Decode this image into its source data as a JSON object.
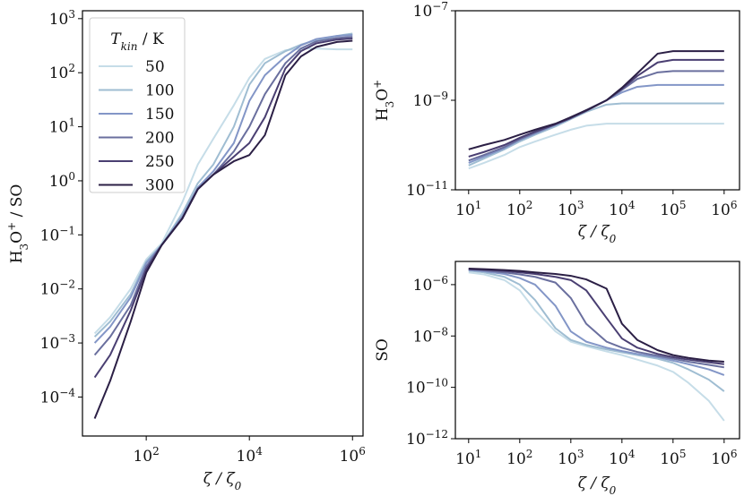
{
  "chart_data": [
    {
      "type": "line",
      "log_x": true,
      "log_y": true,
      "ylabel": [
        "H",
        "3",
        "O",
        "+",
        " / SO"
      ],
      "xlabel": [
        "ζ / ζ",
        "0"
      ],
      "legend_title": [
        "T",
        "kin",
        " / K"
      ],
      "legend": "upper left",
      "xlim": [
        5.8,
        1600000
      ],
      "ylim": [
        1.9e-05,
        1400
      ],
      "xticks": [
        {
          "value": 100,
          "label": "10",
          "exp": "2"
        },
        {
          "value": 10000,
          "label": "10",
          "exp": "4"
        },
        {
          "value": 1000000,
          "label": "10",
          "exp": "6"
        }
      ],
      "yticks": [
        {
          "value": 0.0001,
          "label": "10",
          "exp": "−4"
        },
        {
          "value": 0.001,
          "label": "10",
          "exp": "−3"
        },
        {
          "value": 0.01,
          "label": "10",
          "exp": "−2"
        },
        {
          "value": 0.1,
          "label": "10",
          "exp": "−1"
        },
        {
          "value": 1,
          "label": "10",
          "exp": "0"
        },
        {
          "value": 10,
          "label": "10",
          "exp": "1"
        },
        {
          "value": 100,
          "label": "10",
          "exp": "2"
        },
        {
          "value": 1000,
          "label": "10",
          "exp": "3"
        }
      ],
      "x": [
        10,
        20,
        50,
        100,
        200,
        500,
        1000,
        2000,
        5000,
        10000,
        20000,
        50000,
        100000,
        200000,
        500000,
        1000000
      ],
      "series": [
        {
          "name": "50",
          "color": "#c6dde8",
          "values": [
            0.0015,
            0.003,
            0.01,
            0.035,
            0.07,
            0.4,
            2,
            6,
            25,
            80,
            180,
            260,
            280,
            280,
            270,
            270
          ]
        },
        {
          "name": "100",
          "color": "#9fbdd2",
          "values": [
            0.0013,
            0.0025,
            0.008,
            0.032,
            0.065,
            0.25,
            0.9,
            2,
            10,
            60,
            150,
            250,
            330,
            400,
            480,
            530
          ]
        },
        {
          "name": "150",
          "color": "#8396c7",
          "values": [
            0.001,
            0.002,
            0.007,
            0.03,
            0.065,
            0.22,
            0.75,
            1.5,
            5,
            30,
            90,
            200,
            320,
            420,
            480,
            500
          ]
        },
        {
          "name": "200",
          "color": "#6a6f9e",
          "values": [
            0.0006,
            0.0013,
            0.005,
            0.026,
            0.065,
            0.2,
            0.7,
            1.3,
            3.5,
            10,
            40,
            150,
            280,
            380,
            440,
            460
          ]
        },
        {
          "name": "250",
          "color": "#4a3f72",
          "values": [
            0.00023,
            0.0006,
            0.004,
            0.023,
            0.065,
            0.2,
            0.7,
            1.3,
            2.8,
            5,
            15,
            120,
            250,
            350,
            410,
            430
          ]
        },
        {
          "name": "300",
          "color": "#2b1f45",
          "values": [
            4e-05,
            0.0002,
            0.0025,
            0.02,
            0.065,
            0.2,
            0.7,
            1.3,
            2.3,
            3,
            7,
            90,
            200,
            300,
            370,
            390
          ]
        }
      ]
    },
    {
      "type": "line",
      "log_x": true,
      "log_y": true,
      "ylabel": [
        "H",
        "3",
        "O",
        "+"
      ],
      "xlabel": [
        "ζ / ζ",
        "0"
      ],
      "xlim": [
        5.5,
        2000000
      ],
      "ylim": [
        1e-11,
        1e-07
      ],
      "xticks": [
        {
          "value": 10,
          "label": "10",
          "exp": "1"
        },
        {
          "value": 100,
          "label": "10",
          "exp": "2"
        },
        {
          "value": 1000,
          "label": "10",
          "exp": "3"
        },
        {
          "value": 10000,
          "label": "10",
          "exp": "4"
        },
        {
          "value": 100000,
          "label": "10",
          "exp": "5"
        },
        {
          "value": 1000000,
          "label": "10",
          "exp": "6"
        }
      ],
      "yticks": [
        {
          "value": 1e-11,
          "label": "10",
          "exp": "−11"
        },
        {
          "value": 1e-09,
          "label": "10",
          "exp": "−9"
        },
        {
          "value": 1e-07,
          "label": "10",
          "exp": "−7"
        }
      ],
      "x": [
        10,
        20,
        50,
        100,
        200,
        500,
        1000,
        2000,
        5000,
        10000,
        20000,
        50000,
        100000,
        200000,
        500000,
        1000000
      ],
      "series": [
        {
          "name": "50",
          "color": "#c6dde8",
          "values": [
            3e-11,
            4e-11,
            6e-11,
            9e-11,
            1.2e-10,
            1.7e-10,
            2.2e-10,
            2.7e-10,
            3e-10,
            3e-10,
            3e-10,
            3e-10,
            3e-10,
            3e-10,
            3e-10,
            3e-10
          ]
        },
        {
          "name": "100",
          "color": "#9fbdd2",
          "values": [
            3.5e-11,
            5e-11,
            8e-11,
            1.2e-10,
            1.7e-10,
            2.6e-10,
            3.8e-10,
            5.5e-10,
            8e-10,
            8.5e-10,
            8.5e-10,
            8.5e-10,
            8.5e-10,
            8.5e-10,
            8.5e-10,
            8.5e-10
          ]
        },
        {
          "name": "150",
          "color": "#8396c7",
          "values": [
            4e-11,
            5.5e-11,
            8.5e-11,
            1.3e-10,
            1.8e-10,
            2.8e-10,
            4e-10,
            6e-10,
            1e-09,
            1.5e-09,
            2e-09,
            2.2e-09,
            2.2e-09,
            2.2e-09,
            2.2e-09,
            2.2e-09
          ]
        },
        {
          "name": "200",
          "color": "#6a6f9e",
          "values": [
            4.5e-11,
            6e-11,
            9e-11,
            1.35e-10,
            1.9e-10,
            2.9e-10,
            4e-10,
            6e-10,
            1e-09,
            1.7e-09,
            3e-09,
            4.2e-09,
            4.5e-09,
            4.5e-09,
            4.5e-09,
            4.5e-09
          ]
        },
        {
          "name": "250",
          "color": "#4a3f72",
          "values": [
            5.5e-11,
            7e-11,
            1e-10,
            1.45e-10,
            2e-10,
            2.9e-10,
            4e-10,
            5.8e-10,
            1e-09,
            1.8e-09,
            3.5e-09,
            7e-09,
            8e-09,
            8e-09,
            8e-09,
            8e-09
          ]
        },
        {
          "name": "300",
          "color": "#2b1f45",
          "values": [
            8e-11,
            1e-10,
            1.3e-10,
            1.7e-10,
            2.2e-10,
            3e-10,
            4.2e-10,
            6e-10,
            1e-09,
            1.9e-09,
            4e-09,
            1.1e-08,
            1.25e-08,
            1.25e-08,
            1.25e-08,
            1.25e-08
          ]
        }
      ]
    },
    {
      "type": "line",
      "log_x": true,
      "log_y": true,
      "ylabel": [
        "SO"
      ],
      "xlabel": [
        "ζ / ζ",
        "0"
      ],
      "xlim": [
        5.5,
        2000000
      ],
      "ylim": [
        1e-12,
        8e-06
      ],
      "xticks": [
        {
          "value": 10,
          "label": "10",
          "exp": "1"
        },
        {
          "value": 100,
          "label": "10",
          "exp": "2"
        },
        {
          "value": 1000,
          "label": "10",
          "exp": "3"
        },
        {
          "value": 10000,
          "label": "10",
          "exp": "4"
        },
        {
          "value": 100000,
          "label": "10",
          "exp": "5"
        },
        {
          "value": 1000000,
          "label": "10",
          "exp": "6"
        }
      ],
      "yticks": [
        {
          "value": 1e-12,
          "label": "10",
          "exp": "−12"
        },
        {
          "value": 1e-10,
          "label": "10",
          "exp": "−10"
        },
        {
          "value": 1e-08,
          "label": "10",
          "exp": "−8"
        },
        {
          "value": 1e-06,
          "label": "10",
          "exp": "−6"
        }
      ],
      "x": [
        10,
        20,
        50,
        100,
        200,
        500,
        1000,
        2000,
        5000,
        10000,
        20000,
        50000,
        100000,
        200000,
        500000,
        1000000
      ],
      "series": [
        {
          "name": "50",
          "color": "#c6dde8",
          "values": [
            3e-06,
            2.5e-06,
            1.5e-06,
            6e-07,
            1e-07,
            1.5e-08,
            6e-09,
            4e-09,
            2.5e-09,
            1.8e-09,
            1.2e-09,
            7e-10,
            4e-10,
            1.5e-10,
            3e-11,
            5e-12
          ]
        },
        {
          "name": "100",
          "color": "#9fbdd2",
          "values": [
            3.5e-06,
            3e-06,
            2e-06,
            1e-06,
            2.5e-07,
            2e-08,
            7e-09,
            4.5e-09,
            3e-09,
            2.3e-09,
            1.8e-09,
            1.3e-09,
            9e-10,
            5e-10,
            2e-10,
            7e-11
          ]
        },
        {
          "name": "150",
          "color": "#8396c7",
          "values": [
            3.7e-06,
            3.3e-06,
            2.6e-06,
            1.8e-06,
            1e-06,
            1.5e-07,
            1.5e-08,
            6e-09,
            3.5e-09,
            2.6e-09,
            2e-09,
            1.5e-09,
            1.1e-09,
            8e-10,
            5e-10,
            3e-10
          ]
        },
        {
          "name": "200",
          "color": "#6a6f9e",
          "values": [
            4e-06,
            3.6e-06,
            3e-06,
            2.5e-06,
            2e-06,
            1.2e-06,
            3e-07,
            3e-08,
            6e-09,
            3.5e-09,
            2.4e-09,
            1.7e-09,
            1.3e-09,
            1e-09,
            7.5e-10,
            6e-10
          ]
        },
        {
          "name": "250",
          "color": "#4a3f72",
          "values": [
            4e-06,
            3.8e-06,
            3.4e-06,
            3e-06,
            2.6e-06,
            2e-06,
            1.5e-06,
            6e-07,
            5e-08,
            8e-09,
            3.5e-09,
            2e-09,
            1.5e-09,
            1.2e-09,
            9.5e-10,
            8e-10
          ]
        },
        {
          "name": "300",
          "color": "#2b1f45",
          "values": [
            4.2e-06,
            4e-06,
            3.7e-06,
            3.4e-06,
            3e-06,
            2.6e-06,
            2.2e-06,
            1.6e-06,
            7e-07,
            3e-08,
            7e-09,
            2.8e-09,
            1.8e-09,
            1.4e-09,
            1.1e-09,
            1e-09
          ]
        }
      ]
    }
  ]
}
